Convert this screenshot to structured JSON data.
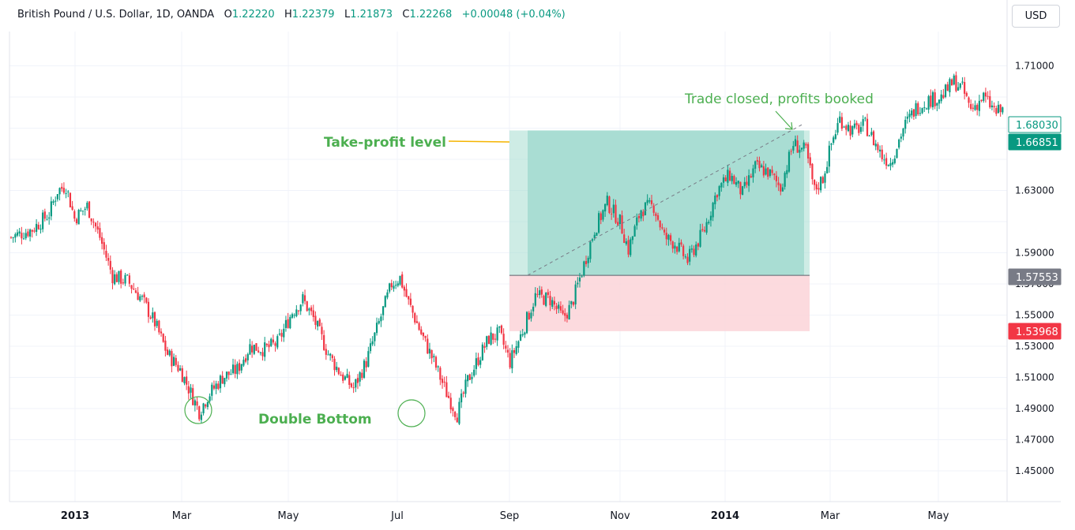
{
  "header": {
    "symbol": "British Pound / U.S. Dollar, 1D, OANDA",
    "open_label": "O",
    "open": "1.22220",
    "high_label": "H",
    "high": "1.22379",
    "low_label": "L",
    "low": "1.21873",
    "close_label": "C",
    "close": "1.22268",
    "change": "+0.00048 (+0.04%)"
  },
  "currency_button": "USD",
  "colors": {
    "up": "#089981",
    "down": "#f23645",
    "annotation": "#4caf50",
    "profit_zone": "#a5dcd0",
    "loss_zone": "#fbd3d8",
    "entry_tag": "#787b86"
  },
  "chart_data": {
    "type": "candlestick",
    "ylim": [
      1.43,
      1.73
    ],
    "y_ticks": [
      "1.45000",
      "1.47000",
      "1.49000",
      "1.51000",
      "1.53000",
      "1.55000",
      "1.57000",
      "1.59000",
      "1.63000",
      "1.71000"
    ],
    "x_ticks": [
      "2013",
      "Mar",
      "May",
      "Jul",
      "Sep",
      "Nov",
      "2014",
      "Mar",
      "May"
    ],
    "key_points": [
      {
        "label": "start",
        "price": 1.6
      },
      {
        "label": "Jan 2013 high",
        "price": 1.633
      },
      {
        "label": "Mar 2013 low",
        "price": 1.488
      },
      {
        "label": "May 2013 high",
        "price": 1.56
      },
      {
        "label": "Jun 2013 high",
        "price": 1.574
      },
      {
        "label": "Jul 2013 low",
        "price": 1.486
      },
      {
        "label": "Sep 2013",
        "price": 1.575
      },
      {
        "label": "Feb 2014",
        "price": 1.668
      },
      {
        "label": "Apr 2014",
        "price": 1.695
      },
      {
        "label": "end",
        "price": 1.685
      }
    ],
    "price_tags": [
      {
        "value": "1.68030",
        "style": "outline"
      },
      {
        "value": "1.66851",
        "style": "up"
      },
      {
        "value": "1.57553",
        "style": "entry"
      },
      {
        "value": "1.53968",
        "style": "down"
      }
    ],
    "position": {
      "entry": 1.57553,
      "take_profit": 1.66851,
      "stop_loss": 1.53968
    },
    "annotations": {
      "take_profit": "Take-profit level",
      "trade_closed": "Trade closed, profits booked",
      "double_bottom": "Double Bottom"
    }
  }
}
